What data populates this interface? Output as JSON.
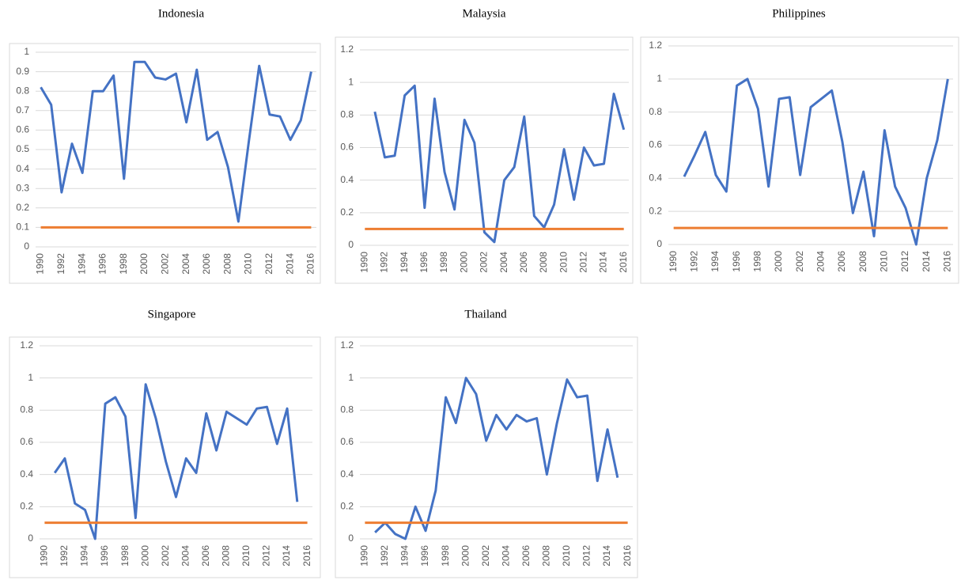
{
  "chart_data": [
    {
      "type": "line",
      "title": "Indonesia",
      "categories": [
        "1990",
        null,
        "1992",
        null,
        "1994",
        null,
        "1996",
        null,
        "1998",
        null,
        "2000",
        null,
        "2002",
        null,
        "2004",
        null,
        "2006",
        null,
        "2008",
        null,
        "2010",
        null,
        "2012",
        null,
        "2014",
        null,
        "2016"
      ],
      "ylim": [
        0,
        1
      ],
      "yticks": [
        0,
        0.1,
        0.2,
        0.3,
        0.4,
        0.5,
        0.6,
        0.7,
        0.8,
        0.9,
        1
      ],
      "grid": true,
      "series": [
        {
          "color": "#4472c4",
          "values": [
            0.82,
            0.73,
            0.28,
            0.53,
            0.38,
            0.8,
            0.8,
            0.88,
            0.35,
            0.95,
            0.95,
            0.87,
            0.86,
            0.89,
            0.64,
            0.91,
            0.55,
            0.59,
            0.41,
            0.13,
            0.54,
            0.93,
            0.68,
            0.67,
            0.55,
            0.65,
            0.9
          ]
        },
        {
          "color": "#ed7d31",
          "values": [
            0.1,
            0.1,
            0.1,
            0.1,
            0.1,
            0.1,
            0.1,
            0.1,
            0.1,
            0.1,
            0.1,
            0.1,
            0.1,
            0.1,
            0.1,
            0.1,
            0.1,
            0.1,
            0.1,
            0.1,
            0.1,
            0.1,
            0.1,
            0.1,
            0.1,
            0.1,
            0.1
          ]
        }
      ]
    },
    {
      "type": "line",
      "title": "Malaysia",
      "categories": [
        "1990",
        null,
        "1992",
        null,
        "1994",
        null,
        "1996",
        null,
        "1998",
        null,
        "2000",
        null,
        "2002",
        null,
        "2004",
        null,
        "2006",
        null,
        "2008",
        null,
        "2010",
        null,
        "2012",
        null,
        "2014",
        null,
        "2016"
      ],
      "ylim": [
        0,
        1.2
      ],
      "yticks": [
        0,
        0.2,
        0.4,
        0.6,
        0.8,
        1,
        1.2
      ],
      "grid": true,
      "series": [
        {
          "color": "#4472c4",
          "values": [
            null,
            0.82,
            0.54,
            0.55,
            0.92,
            0.98,
            0.23,
            0.9,
            0.45,
            0.22,
            0.77,
            0.63,
            0.08,
            0.02,
            0.4,
            0.48,
            0.79,
            0.18,
            0.11,
            0.25,
            0.59,
            0.28,
            0.6,
            0.49,
            0.5,
            0.93,
            0.71
          ]
        },
        {
          "color": "#ed7d31",
          "values": [
            0.1,
            0.1,
            0.1,
            0.1,
            0.1,
            0.1,
            0.1,
            0.1,
            0.1,
            0.1,
            0.1,
            0.1,
            0.1,
            0.1,
            0.1,
            0.1,
            0.1,
            0.1,
            0.1,
            0.1,
            0.1,
            0.1,
            0.1,
            0.1,
            0.1,
            0.1,
            0.1
          ]
        }
      ]
    },
    {
      "type": "line",
      "title": "Philippines",
      "categories": [
        "1990",
        null,
        "1992",
        null,
        "1994",
        null,
        "1996",
        null,
        "1998",
        null,
        "2000",
        null,
        "2002",
        null,
        "2004",
        null,
        "2006",
        null,
        "2008",
        null,
        "2010",
        null,
        "2012",
        null,
        "2014",
        null,
        "2016"
      ],
      "ylim": [
        0,
        1.2
      ],
      "yticks": [
        0,
        0.2,
        0.4,
        0.6,
        0.8,
        1,
        1.2
      ],
      "grid": true,
      "series": [
        {
          "color": "#4472c4",
          "values": [
            null,
            0.41,
            0.54,
            0.68,
            0.42,
            0.32,
            0.96,
            1.0,
            0.82,
            0.35,
            0.88,
            0.89,
            0.42,
            0.83,
            0.88,
            0.93,
            0.62,
            0.19,
            0.44,
            0.05,
            0.69,
            0.35,
            0.22,
            0.0,
            0.4,
            0.63,
            1.0
          ]
        },
        {
          "color": "#ed7d31",
          "values": [
            0.1,
            0.1,
            0.1,
            0.1,
            0.1,
            0.1,
            0.1,
            0.1,
            0.1,
            0.1,
            0.1,
            0.1,
            0.1,
            0.1,
            0.1,
            0.1,
            0.1,
            0.1,
            0.1,
            0.1,
            0.1,
            0.1,
            0.1,
            0.1,
            0.1,
            0.1,
            0.1
          ]
        }
      ]
    },
    {
      "type": "line",
      "title": "Singapore",
      "categories": [
        "1990",
        null,
        "1992",
        null,
        "1994",
        null,
        "1996",
        null,
        "1998",
        null,
        "2000",
        null,
        "2002",
        null,
        "2004",
        null,
        "2006",
        null,
        "2008",
        null,
        "2010",
        null,
        "2012",
        null,
        "2014",
        null,
        "2016"
      ],
      "ylim": [
        0,
        1.2
      ],
      "yticks": [
        0,
        0.2,
        0.4,
        0.6,
        0.8,
        1,
        1.2
      ],
      "grid": true,
      "series": [
        {
          "color": "#4472c4",
          "values": [
            null,
            0.41,
            0.5,
            0.22,
            0.18,
            0.0,
            0.84,
            0.88,
            0.76,
            0.13,
            0.96,
            0.75,
            0.48,
            0.26,
            0.5,
            0.41,
            0.78,
            0.55,
            0.79,
            0.75,
            0.71,
            0.81,
            0.82,
            0.59,
            0.81,
            0.23,
            null
          ]
        },
        {
          "color": "#ed7d31",
          "values": [
            0.1,
            0.1,
            0.1,
            0.1,
            0.1,
            0.1,
            0.1,
            0.1,
            0.1,
            0.1,
            0.1,
            0.1,
            0.1,
            0.1,
            0.1,
            0.1,
            0.1,
            0.1,
            0.1,
            0.1,
            0.1,
            0.1,
            0.1,
            0.1,
            0.1,
            0.1,
            0.1
          ]
        }
      ]
    },
    {
      "type": "line",
      "title": "Thailand",
      "categories": [
        "1990",
        null,
        "1992",
        null,
        "1994",
        null,
        "1996",
        null,
        "1998",
        null,
        "2000",
        null,
        "2002",
        null,
        "2004",
        null,
        "2006",
        null,
        "2008",
        null,
        "2010",
        null,
        "2012",
        null,
        "2014",
        null,
        "2016"
      ],
      "ylim": [
        0,
        1.2
      ],
      "yticks": [
        0,
        0.2,
        0.4,
        0.6,
        0.8,
        1,
        1.2
      ],
      "grid": true,
      "series": [
        {
          "color": "#4472c4",
          "values": [
            null,
            0.04,
            0.1,
            0.03,
            0.0,
            0.2,
            0.05,
            0.3,
            0.88,
            0.72,
            1.0,
            0.9,
            0.61,
            0.77,
            0.68,
            0.77,
            0.73,
            0.75,
            0.4,
            0.72,
            0.99,
            0.88,
            0.89,
            0.36,
            0.68,
            0.38,
            null
          ]
        },
        {
          "color": "#ed7d31",
          "values": [
            0.1,
            0.1,
            0.1,
            0.1,
            0.1,
            0.1,
            0.1,
            0.1,
            0.1,
            0.1,
            0.1,
            0.1,
            0.1,
            0.1,
            0.1,
            0.1,
            0.1,
            0.1,
            0.1,
            0.1,
            0.1,
            0.1,
            0.1,
            0.1,
            0.1,
            0.1,
            0.1
          ]
        }
      ]
    }
  ]
}
